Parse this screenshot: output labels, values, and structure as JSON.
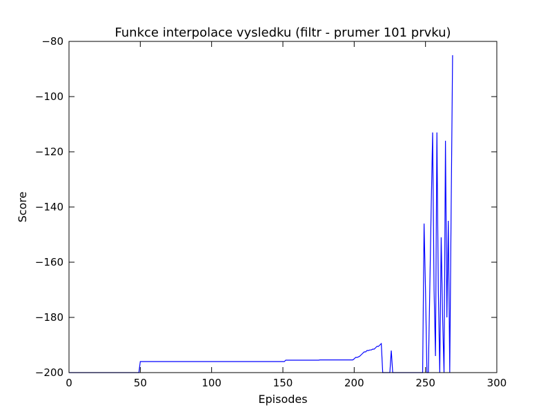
{
  "chart_data": {
    "type": "line",
    "title": "Funkce interpolace vysledku  (filtr - prumer 101 prvku)",
    "xlabel": "Episodes",
    "ylabel": "Score",
    "xlim": [
      0,
      300
    ],
    "ylim": [
      -200,
      -80
    ],
    "xticks": [
      0,
      50,
      100,
      150,
      200,
      250,
      300
    ],
    "yticks": [
      -200,
      -180,
      -160,
      -140,
      -120,
      -100,
      -80
    ],
    "ytick_labels": [
      "−200",
      "−180",
      "−160",
      "−140",
      "−120",
      "−100",
      "−80"
    ],
    "grid": false,
    "colors": {
      "series": "#0000ff",
      "axes": "#000000",
      "background": "#ffffff"
    },
    "series": [
      {
        "x": [
          0,
          49,
          50,
          100,
          151,
          152,
          175,
          176,
          199,
          200,
          201,
          202,
          203,
          204,
          205,
          206,
          207,
          208,
          209,
          210,
          211,
          212,
          213,
          214,
          215,
          216,
          217,
          218,
          219,
          220,
          225,
          226,
          227,
          248,
          249,
          250,
          251,
          252,
          253,
          254,
          255,
          256,
          257,
          258,
          259,
          260,
          261,
          262,
          263,
          264,
          265,
          266,
          267,
          268,
          269
        ],
        "y": [
          -200,
          -200,
          -196,
          -196,
          -196,
          -195.5,
          -195.5,
          -195.4,
          -195.4,
          -195,
          -194.5,
          -194.5,
          -194.3,
          -194,
          -193.5,
          -193,
          -192.5,
          -192.5,
          -192,
          -192,
          -191.8,
          -191.8,
          -191.5,
          -191.5,
          -191,
          -190.5,
          -190.5,
          -190,
          -189.5,
          -200,
          -200,
          -192,
          -200,
          -200,
          -146,
          -170,
          -200,
          -200,
          -170,
          -140,
          -113,
          -170,
          -194,
          -113,
          -170,
          -200,
          -151,
          -180,
          -200,
          -116,
          -180,
          -145,
          -200,
          -140,
          -85
        ]
      }
    ]
  }
}
